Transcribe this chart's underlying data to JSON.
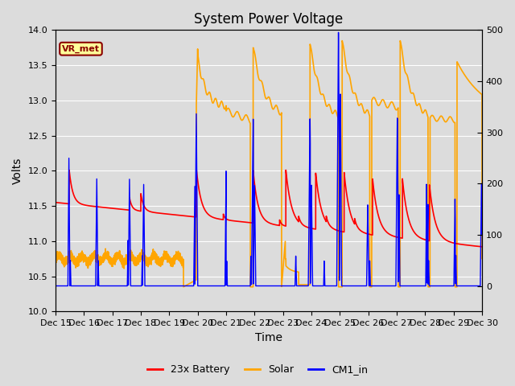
{
  "title": "System Power Voltage",
  "xlabel": "Time",
  "ylabel": "Volts",
  "ylim_left": [
    10.0,
    14.0
  ],
  "ylim_right": [
    -50,
    500
  ],
  "background_color": "#dcdcdc",
  "x_tick_labels": [
    "Dec 15",
    "Dec 16",
    "Dec 17",
    "Dec 18",
    "Dec 19",
    "Dec 20",
    "Dec 21",
    "Dec 22",
    "Dec 23",
    "Dec 24",
    "Dec 25",
    "Dec 26",
    "Dec 27",
    "Dec 28",
    "Dec 29",
    "Dec 30"
  ],
  "annotation_text": "VR_met",
  "annotation_box_color": "#ffff99",
  "annotation_border_color": "#8B0000",
  "legend_entries": [
    "23x Battery",
    "Solar",
    "CM1_in"
  ],
  "legend_colors": [
    "red",
    "orange",
    "blue"
  ],
  "title_fontsize": 12,
  "axis_label_fontsize": 10,
  "tick_fontsize": 8
}
